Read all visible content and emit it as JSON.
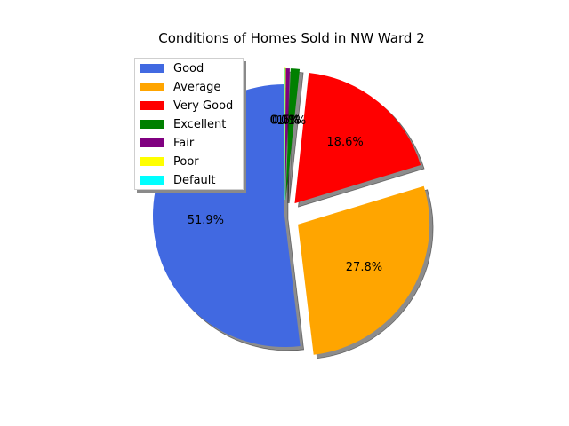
{
  "chart_data": {
    "type": "pie",
    "title": "Conditions of Homes Sold in NW Ward 2",
    "categories": [
      "Good",
      "Average",
      "Very Good",
      "Excellent",
      "Fair",
      "Poor",
      "Default"
    ],
    "values": [
      51.9,
      27.8,
      18.6,
      1.1,
      0.5,
      0.1,
      0.0
    ],
    "labels": [
      "51.9%",
      "27.8%",
      "18.6%",
      "1.1%",
      "0.5%",
      "0.1%",
      "0.0%"
    ],
    "colors": [
      "#4169e1",
      "#ffa500",
      "#ff0000",
      "#008000",
      "#800080",
      "#ffff00",
      "#00ffff"
    ],
    "legend_position": "upper-left",
    "shadow": true,
    "exploded": true
  }
}
